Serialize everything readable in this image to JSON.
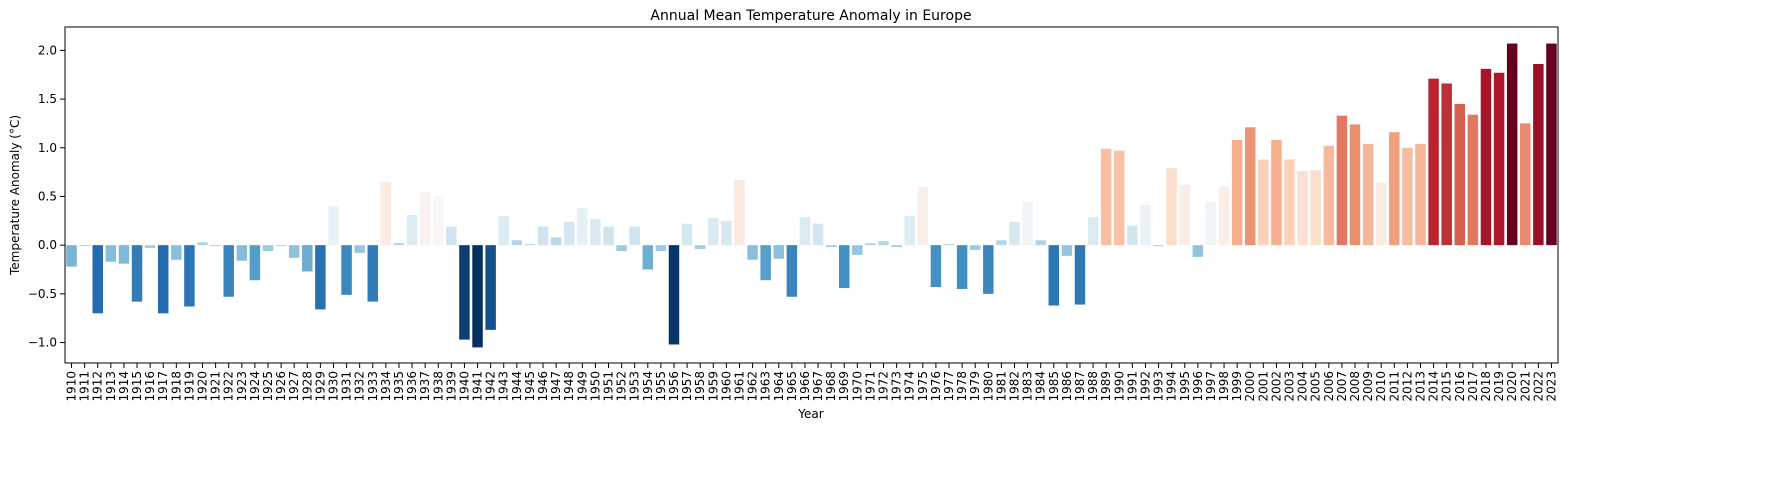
{
  "chart_data": {
    "type": "bar",
    "title": "Annual Mean Temperature Anomaly in Europe",
    "xlabel": "Year",
    "ylabel": "Temperature Anomaly (°C)",
    "categories": [
      "1910",
      "1911",
      "1912",
      "1913",
      "1914",
      "1915",
      "1916",
      "1917",
      "1918",
      "1919",
      "1920",
      "1921",
      "1922",
      "1923",
      "1924",
      "1925",
      "1926",
      "1927",
      "1928",
      "1929",
      "1930",
      "1931",
      "1932",
      "1933",
      "1934",
      "1935",
      "1936",
      "1937",
      "1938",
      "1939",
      "1940",
      "1941",
      "1942",
      "1943",
      "1944",
      "1945",
      "1946",
      "1947",
      "1948",
      "1949",
      "1950",
      "1951",
      "1952",
      "1953",
      "1954",
      "1955",
      "1956",
      "1957",
      "1958",
      "1959",
      "1960",
      "1961",
      "1962",
      "1963",
      "1964",
      "1965",
      "1966",
      "1967",
      "1968",
      "1969",
      "1970",
      "1971",
      "1972",
      "1973",
      "1974",
      "1975",
      "1976",
      "1977",
      "1978",
      "1979",
      "1980",
      "1981",
      "1982",
      "1983",
      "1984",
      "1985",
      "1986",
      "1987",
      "1988",
      "1989",
      "1990",
      "1991",
      "1992",
      "1993",
      "1994",
      "1995",
      "1996",
      "1997",
      "1998",
      "1999",
      "2000",
      "2001",
      "2002",
      "2003",
      "2004",
      "2005",
      "2006",
      "2007",
      "2008",
      "2009",
      "2010",
      "2011",
      "2012",
      "2013",
      "2014",
      "2015",
      "2016",
      "2017",
      "2018",
      "2019",
      "2020",
      "2021",
      "2022",
      "2023"
    ],
    "values": [
      -0.22,
      -0.01,
      -0.7,
      -0.17,
      -0.19,
      -0.58,
      -0.03,
      -0.7,
      -0.15,
      -0.63,
      0.03,
      -0.01,
      -0.53,
      -0.16,
      -0.36,
      -0.06,
      -0.01,
      -0.13,
      -0.27,
      -0.66,
      0.4,
      -0.51,
      -0.08,
      -0.58,
      0.65,
      0.02,
      0.31,
      0.55,
      0.5,
      0.19,
      -0.97,
      -1.05,
      -0.87,
      0.3,
      0.05,
      0.01,
      0.19,
      0.08,
      0.24,
      0.38,
      0.27,
      0.19,
      -0.06,
      0.19,
      -0.25,
      -0.06,
      -1.02,
      0.22,
      -0.04,
      0.28,
      0.25,
      0.67,
      -0.15,
      -0.36,
      -0.14,
      -0.53,
      0.29,
      0.22,
      -0.02,
      -0.44,
      -0.1,
      0.02,
      0.04,
      -0.02,
      0.3,
      0.6,
      -0.43,
      0.01,
      -0.45,
      -0.05,
      -0.5,
      0.05,
      0.24,
      0.45,
      0.05,
      -0.62,
      -0.11,
      -0.61,
      0.29,
      0.99,
      0.97,
      0.2,
      0.41,
      -0.01,
      0.79,
      0.62,
      -0.12,
      0.45,
      0.6,
      1.08,
      1.21,
      0.88,
      1.08,
      0.88,
      0.76,
      0.77,
      1.02,
      1.33,
      1.24,
      1.04,
      0.64,
      1.16,
      1.0,
      1.04,
      1.71,
      1.66,
      1.45,
      1.34,
      1.81,
      1.77,
      2.07,
      1.25,
      1.86,
      2.07
    ],
    "palette": [
      "#053061",
      "#2166ac",
      "#4393c3",
      "#92c5de",
      "#d1e5f0",
      "#f7f7f7",
      "#fddbc7",
      "#f4a582",
      "#d6604d",
      "#b2182b",
      "#67001f"
    ],
    "ylim": [
      -1.21,
      2.24
    ],
    "yticks": [
      {
        "value": -1.0,
        "label": "−1.0"
      },
      {
        "value": -0.5,
        "label": "−0.5"
      },
      {
        "value": 0,
        "label": "0.0"
      },
      {
        "value": 0.5,
        "label": "0.5"
      },
      {
        "value": 1.0,
        "label": "1.0"
      },
      {
        "value": 1.5,
        "label": "1.5"
      },
      {
        "value": 2.0,
        "label": "2.0"
      }
    ],
    "grid": false
  }
}
